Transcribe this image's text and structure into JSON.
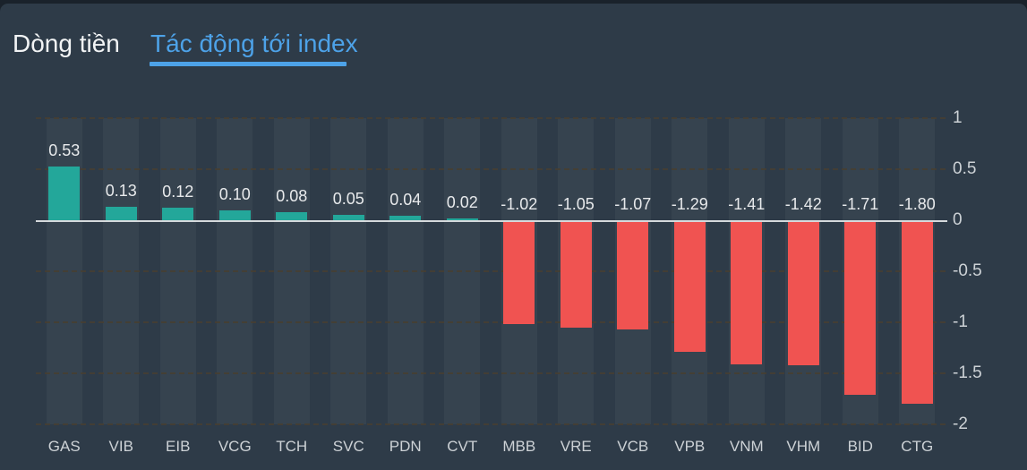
{
  "tabs": [
    {
      "label": "Dòng tiền",
      "active": false
    },
    {
      "label": "Tác động tới index",
      "active": true
    }
  ],
  "chart_data": {
    "type": "bar",
    "title": "Tác động tới index",
    "categories": [
      "GAS",
      "VIB",
      "EIB",
      "VCG",
      "TCH",
      "SVC",
      "PDN",
      "CVT",
      "MBB",
      "VRE",
      "VCB",
      "VPB",
      "VNM",
      "VHM",
      "BID",
      "CTG"
    ],
    "values": [
      0.53,
      0.13,
      0.12,
      0.1,
      0.08,
      0.05,
      0.04,
      0.02,
      -1.02,
      -1.05,
      -1.07,
      -1.29,
      -1.41,
      -1.42,
      -1.71,
      -1.8
    ],
    "value_labels": [
      "0.53",
      "0.13",
      "0.12",
      "0.10",
      "0.08",
      "0.05",
      "0.04",
      "0.02",
      "-1.02",
      "-1.05",
      "-1.07",
      "-1.29",
      "-1.41",
      "-1.42",
      "-1.71",
      "-1.80"
    ],
    "xlabel": "",
    "ylabel": "",
    "ylim": [
      -2,
      1
    ],
    "y_ticks": [
      1,
      0.5,
      0,
      -0.5,
      -1,
      -1.5,
      -2
    ],
    "y_tick_labels": [
      "1",
      "0.5",
      "0",
      "-0.5",
      "-1",
      "-1.5",
      "-2"
    ],
    "axis_side": "right",
    "grid": "horizontal-dashed",
    "legend": "none",
    "colors": {
      "positive_bar": "#23a79a",
      "negative_bar": "#f05351",
      "column_band": "#36434f",
      "panel_background": "#2e3b48",
      "zero_line": "#d5d9dc",
      "gridline": "#463f33",
      "value_label_text": "#e8eaec",
      "axis_text": "#cdd2d6",
      "active_tab": "#4da2e8",
      "inactive_tab": "#f2f4f5"
    }
  }
}
